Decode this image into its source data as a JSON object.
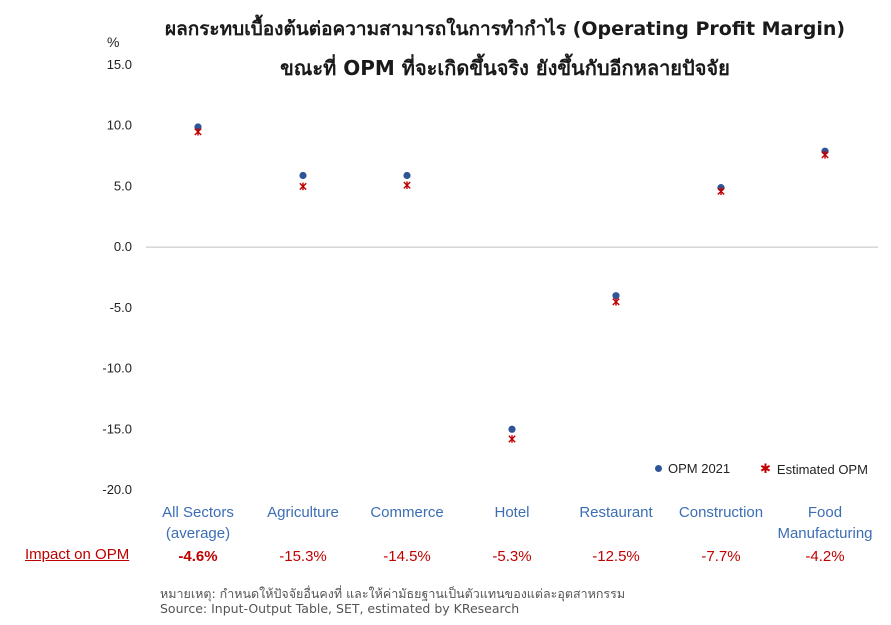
{
  "title": {
    "line1": "ผลกระทบเบื้องต้นต่อความสามารถในการทำกำไร (Operating Profit Margin)",
    "line2": "ขณะที่ OPM ที่จะเกิดขึ้นจริง ยังขึ้นกับอีกหลายปัจจัย"
  },
  "colors": {
    "opm_2021": "#2f5597",
    "estimated_opm": "#c00000",
    "category_text": "#3c6eb4",
    "impact_text": "#c00000"
  },
  "chart_data": {
    "type": "scatter",
    "ylabel": "%",
    "ylim": [
      -20,
      15
    ],
    "yticks": [
      "15.0",
      "10.0",
      "5.0",
      "0.0",
      "-5.0",
      "-10.0",
      "-15.0",
      "-20.0"
    ],
    "ytick_values": [
      15,
      10,
      5,
      0,
      -5,
      -10,
      -15,
      -20
    ],
    "categories": [
      [
        "All Sectors",
        "(average)"
      ],
      [
        "Agriculture"
      ],
      [
        "Commerce"
      ],
      [
        "Hotel"
      ],
      [
        "Restaurant"
      ],
      [
        "Construction"
      ],
      [
        "Food",
        "Manufacturing"
      ]
    ],
    "series": [
      {
        "name": "OPM 2021",
        "marker": "dot",
        "values": [
          9.9,
          5.9,
          5.9,
          -15.0,
          -4.0,
          4.9,
          7.9
        ]
      },
      {
        "name": "Estimated OPM",
        "marker": "x",
        "values": [
          9.5,
          5.0,
          5.1,
          -15.8,
          -4.5,
          4.6,
          7.6
        ]
      }
    ],
    "legend_position": "bottom-right",
    "grid": false
  },
  "impact": {
    "label": "Impact on OPM",
    "values": [
      "-4.6%",
      "-15.3%",
      "-14.5%",
      "-5.3%",
      "-12.5%",
      "-7.7%",
      "-4.2%"
    ]
  },
  "notes": {
    "line1": "หมายเหตุ: กำหนดให้ปัจจัยอื่นคงที่ และให้ค่ามัธยฐานเป็นตัวแทนของแต่ละอุตสาหกรรม",
    "line2": "Source: Input-Output Table, SET, estimated by KResearch"
  }
}
